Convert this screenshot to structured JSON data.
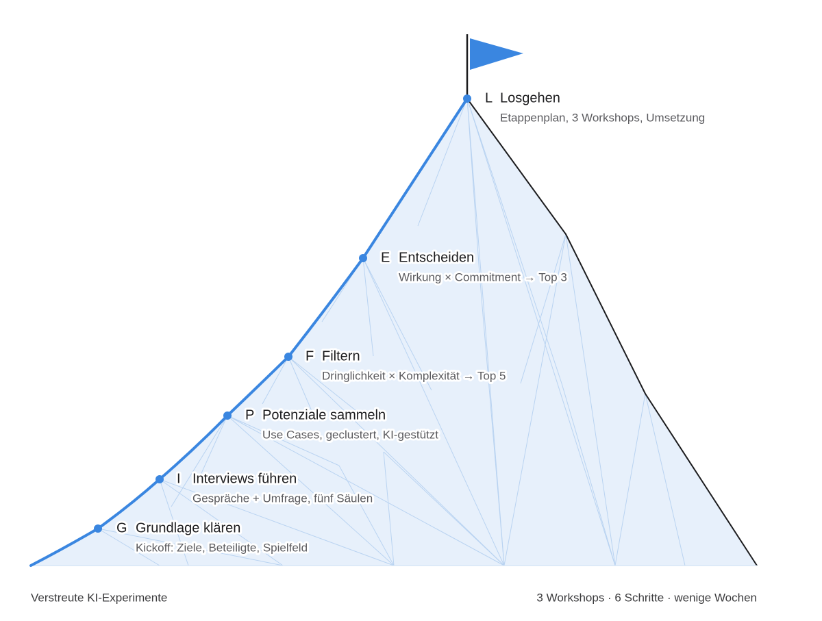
{
  "steps": [
    {
      "letter": "G",
      "title": "Grundlage klären",
      "subtitle": "Kickoff: Ziele, Beteiligte, Spielfeld"
    },
    {
      "letter": "I",
      "title": "Interviews führen",
      "subtitle": "Gespräche + Umfrage, fünf Säulen"
    },
    {
      "letter": "P",
      "title": "Potenziale sammeln",
      "subtitle": "Use Cases, geclustert, KI-gestützt"
    },
    {
      "letter": "F",
      "title": "Filtern",
      "subtitle": "Dringlichkeit × Komplexität → Top 5"
    },
    {
      "letter": "E",
      "title": "Entscheiden",
      "subtitle": "Wirkung × Commitment → Top 3"
    },
    {
      "letter": "L",
      "title": "Losgehen",
      "subtitle": "Etappenplan, 3 Workshops, Umsetzung"
    }
  ],
  "footer": {
    "left": "Verstreute KI-Experimente",
    "right": "3 Workshops · 6 Schritte · wenige Wochen"
  }
}
